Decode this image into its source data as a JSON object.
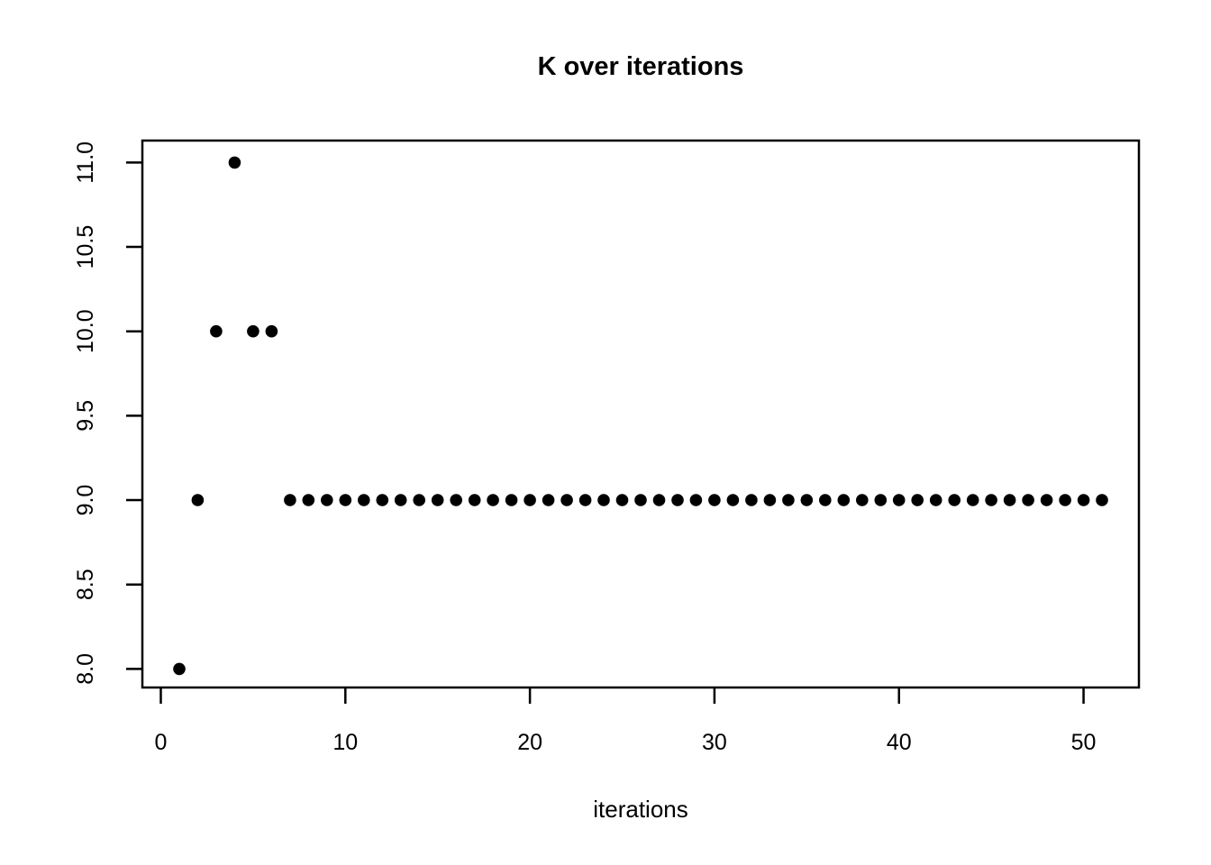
{
  "chart_data": {
    "type": "scatter",
    "title": "K over iterations",
    "xlabel": "iterations",
    "ylabel": "",
    "x": [
      1,
      2,
      3,
      4,
      5,
      6,
      7,
      8,
      9,
      10,
      11,
      12,
      13,
      14,
      15,
      16,
      17,
      18,
      19,
      20,
      21,
      22,
      23,
      24,
      25,
      26,
      27,
      28,
      29,
      30,
      31,
      32,
      33,
      34,
      35,
      36,
      37,
      38,
      39,
      40,
      41,
      42,
      43,
      44,
      45,
      46,
      47,
      48,
      49,
      50,
      51
    ],
    "y": [
      8,
      9,
      10,
      11,
      10,
      10,
      9,
      9,
      9,
      9,
      9,
      9,
      9,
      9,
      9,
      9,
      9,
      9,
      9,
      9,
      9,
      9,
      9,
      9,
      9,
      9,
      9,
      9,
      9,
      9,
      9,
      9,
      9,
      9,
      9,
      9,
      9,
      9,
      9,
      9,
      9,
      9,
      9,
      9,
      9,
      9,
      9,
      9,
      9,
      9,
      9
    ],
    "xticks": [
      0,
      10,
      20,
      30,
      40,
      50
    ],
    "xtick_labels": [
      "0",
      "10",
      "20",
      "30",
      "40",
      "50"
    ],
    "yticks": [
      8.0,
      8.5,
      9.0,
      9.5,
      10.0,
      10.5,
      11.0
    ],
    "ytick_labels": [
      "8.0",
      "8.5",
      "9.0",
      "9.5",
      "10.0",
      "10.5",
      "11.0"
    ],
    "xlim": [
      -1,
      53
    ],
    "ylim": [
      7.89,
      11.13
    ],
    "grid": false,
    "legend": false,
    "point_color": "#000000",
    "axis_color": "#000000",
    "background_color": "#ffffff"
  }
}
